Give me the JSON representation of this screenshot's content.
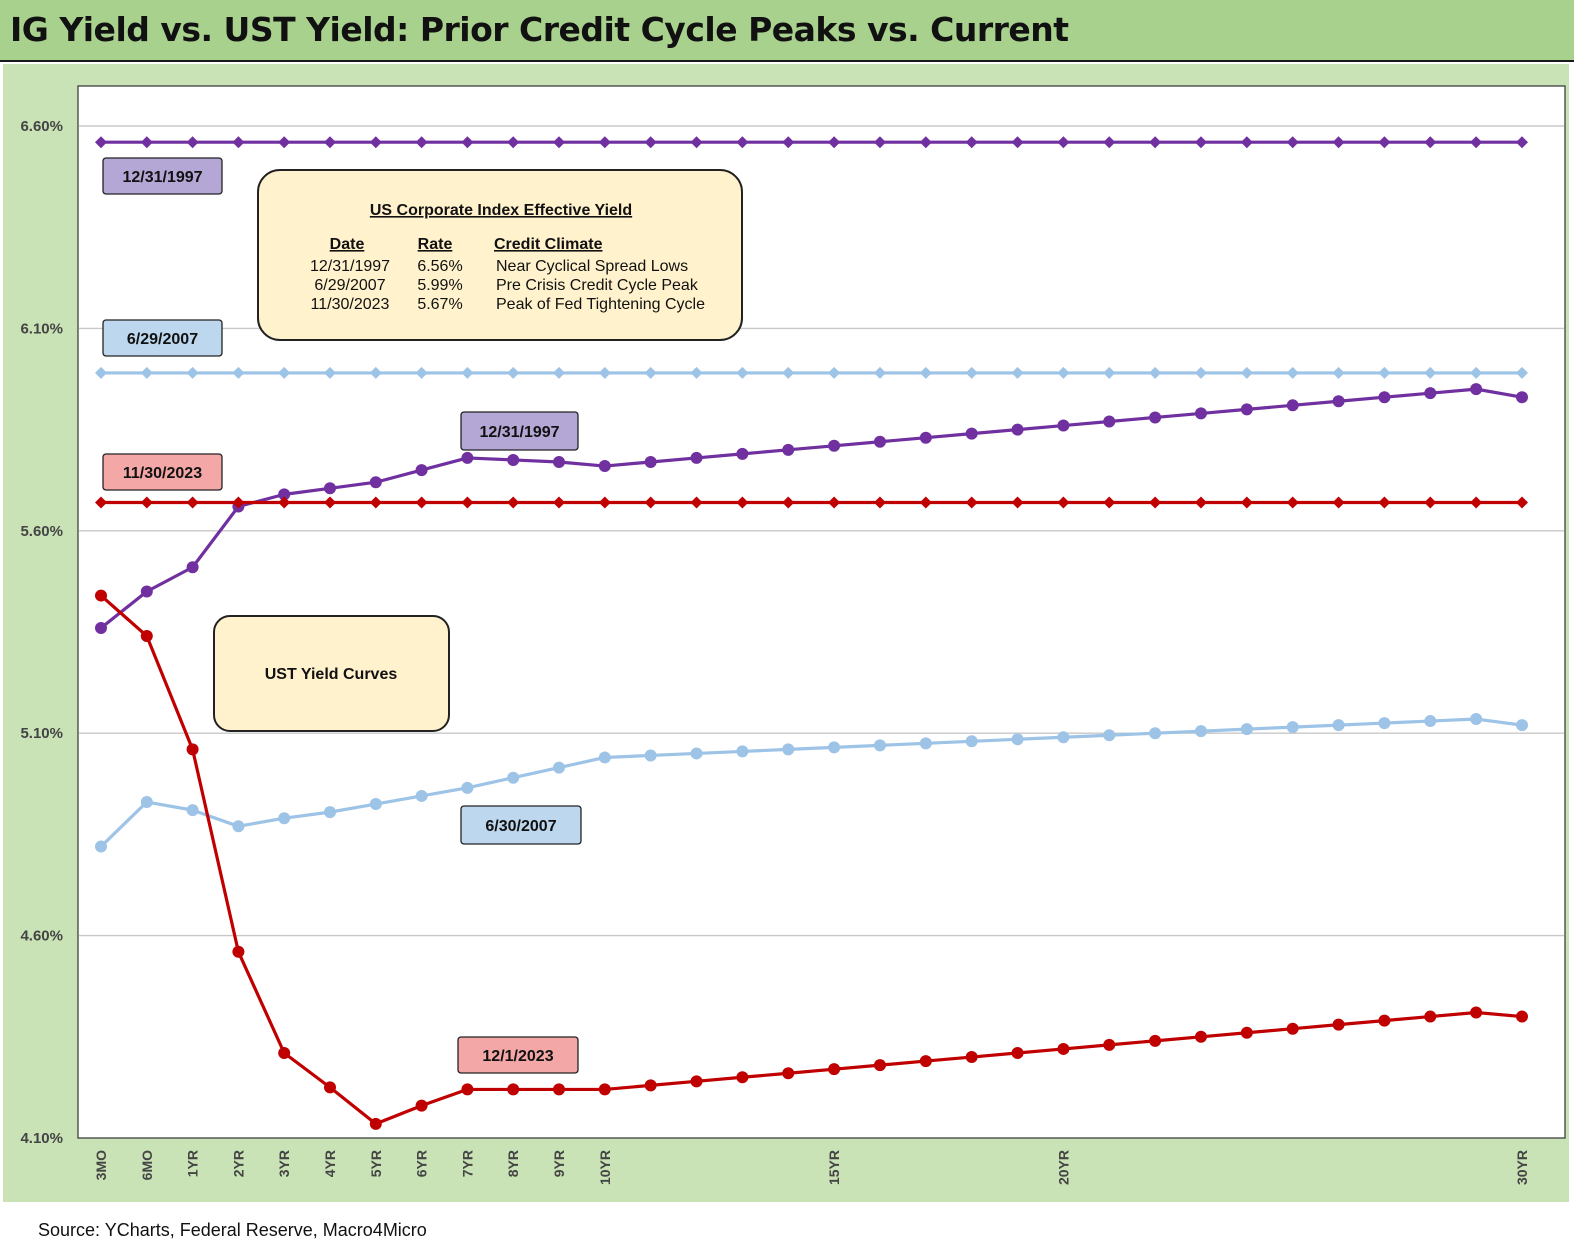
{
  "title": "IG Yield vs. UST Yield: Prior Credit Cycle Peaks vs. Current",
  "source": "Source: YCharts, Federal Reserve, Macro4Micro",
  "colors": {
    "purple": "#7030a0",
    "light_blue": "#9dc3e6",
    "red": "#c00000",
    "purple_box": "#b4a7d6",
    "blue_box": "#bdd7ee",
    "red_box": "#f4a7a7",
    "yellow_box": "#fff2cc"
  },
  "chart_data": {
    "type": "line",
    "title": "IG Yield vs. UST Yield: Prior Credit Cycle Peaks vs. Current",
    "xlabel": "",
    "ylabel": "",
    "x": [
      0.25,
      0.5,
      1,
      2,
      3,
      4,
      5,
      6,
      7,
      8,
      9,
      10,
      11,
      12,
      13,
      14,
      15,
      16,
      17,
      18,
      19,
      20,
      21,
      22,
      23,
      24,
      25,
      26,
      27,
      28,
      29,
      30
    ],
    "x_tick_labels": [
      "3MO",
      "6MO",
      "1YR",
      "2YR",
      "3YR",
      "4YR",
      "5YR",
      "6YR",
      "7YR",
      "8YR",
      "9YR",
      "10YR",
      "",
      "",
      "",
      "",
      "15YR",
      "",
      "",
      "",
      "",
      "20YR",
      "",
      "",
      "",
      "",
      "",
      "",
      "",
      "",
      "",
      "30YR"
    ],
    "y_ticks": [
      "4.10%",
      "4.60%",
      "5.10%",
      "5.60%",
      "6.10%",
      "6.60%"
    ],
    "ylim": [
      4.1,
      6.6
    ],
    "grid": true,
    "series": [
      {
        "name": "12/31/1997",
        "kind": "ig_flat",
        "color": "purple",
        "marker": "diamond",
        "values": [
          6.56,
          6.56,
          6.56,
          6.56,
          6.56,
          6.56,
          6.56,
          6.56,
          6.56,
          6.56,
          6.56,
          6.56,
          6.56,
          6.56,
          6.56,
          6.56,
          6.56,
          6.56,
          6.56,
          6.56,
          6.56,
          6.56,
          6.56,
          6.56,
          6.56,
          6.56,
          6.56,
          6.56,
          6.56,
          6.56,
          6.56,
          6.56
        ]
      },
      {
        "name": "6/29/2007",
        "kind": "ig_flat",
        "color": "light_blue",
        "marker": "diamond",
        "values": [
          5.99,
          5.99,
          5.99,
          5.99,
          5.99,
          5.99,
          5.99,
          5.99,
          5.99,
          5.99,
          5.99,
          5.99,
          5.99,
          5.99,
          5.99,
          5.99,
          5.99,
          5.99,
          5.99,
          5.99,
          5.99,
          5.99,
          5.99,
          5.99,
          5.99,
          5.99,
          5.99,
          5.99,
          5.99,
          5.99,
          5.99,
          5.99
        ]
      },
      {
        "name": "11/30/2023",
        "kind": "ig_flat",
        "color": "red",
        "marker": "diamond",
        "values": [
          5.67,
          5.67,
          5.67,
          5.67,
          5.67,
          5.67,
          5.67,
          5.67,
          5.67,
          5.67,
          5.67,
          5.67,
          5.67,
          5.67,
          5.67,
          5.67,
          5.67,
          5.67,
          5.67,
          5.67,
          5.67,
          5.67,
          5.67,
          5.67,
          5.67,
          5.67,
          5.67,
          5.67,
          5.67,
          5.67,
          5.67,
          5.67
        ]
      },
      {
        "name": "12/31/1997",
        "kind": "ust",
        "color": "purple",
        "marker": "circle",
        "values": [
          5.36,
          5.45,
          5.51,
          5.66,
          5.69,
          5.705,
          5.72,
          5.75,
          5.78,
          5.775,
          5.77,
          5.76,
          5.77,
          5.78,
          5.79,
          5.8,
          5.81,
          5.82,
          5.83,
          5.84,
          5.85,
          5.86,
          5.87,
          5.88,
          5.89,
          5.9,
          5.91,
          5.92,
          5.93,
          5.94,
          5.95,
          5.93
        ]
      },
      {
        "name": "6/30/2007",
        "kind": "ust",
        "color": "light_blue",
        "marker": "circle",
        "values": [
          4.82,
          4.93,
          4.91,
          4.87,
          4.89,
          4.905,
          4.925,
          4.945,
          4.965,
          4.99,
          5.015,
          5.04,
          5.045,
          5.05,
          5.055,
          5.06,
          5.065,
          5.07,
          5.075,
          5.08,
          5.085,
          5.09,
          5.095,
          5.1,
          5.105,
          5.11,
          5.115,
          5.12,
          5.125,
          5.13,
          5.135,
          5.12
        ]
      },
      {
        "name": "12/1/2023",
        "kind": "ust",
        "color": "red",
        "marker": "circle",
        "values": [
          5.44,
          5.34,
          5.06,
          4.56,
          4.31,
          4.225,
          4.135,
          4.18,
          4.22,
          4.22,
          4.22,
          4.22,
          4.23,
          4.24,
          4.25,
          4.26,
          4.27,
          4.28,
          4.29,
          4.3,
          4.31,
          4.32,
          4.33,
          4.34,
          4.35,
          4.36,
          4.37,
          4.38,
          4.39,
          4.4,
          4.41,
          4.4
        ]
      }
    ],
    "annotations": {
      "series_labels": [
        {
          "text": "12/31/1997",
          "box": "purple_box"
        },
        {
          "text": "6/29/2007",
          "box": "blue_box"
        },
        {
          "text": "11/30/2023",
          "box": "red_box"
        },
        {
          "text": "12/31/1997",
          "box": "purple_box"
        },
        {
          "text": "6/30/2007",
          "box": "blue_box"
        },
        {
          "text": "12/1/2023",
          "box": "red_box"
        }
      ],
      "ust_box": "UST Yield Curves",
      "legend_table": {
        "title": "US Corporate Index Effective Yield",
        "headers": [
          "Date",
          "Rate",
          "Credit Climate"
        ],
        "rows": [
          [
            "12/31/1997",
            "6.56%",
            "Near Cyclical Spread Lows"
          ],
          [
            "6/29/2007",
            "5.99%",
            "Pre Crisis Credit Cycle Peak"
          ],
          [
            "11/30/2023",
            "5.67%",
            "Peak of Fed Tightening Cycle"
          ]
        ]
      }
    }
  }
}
